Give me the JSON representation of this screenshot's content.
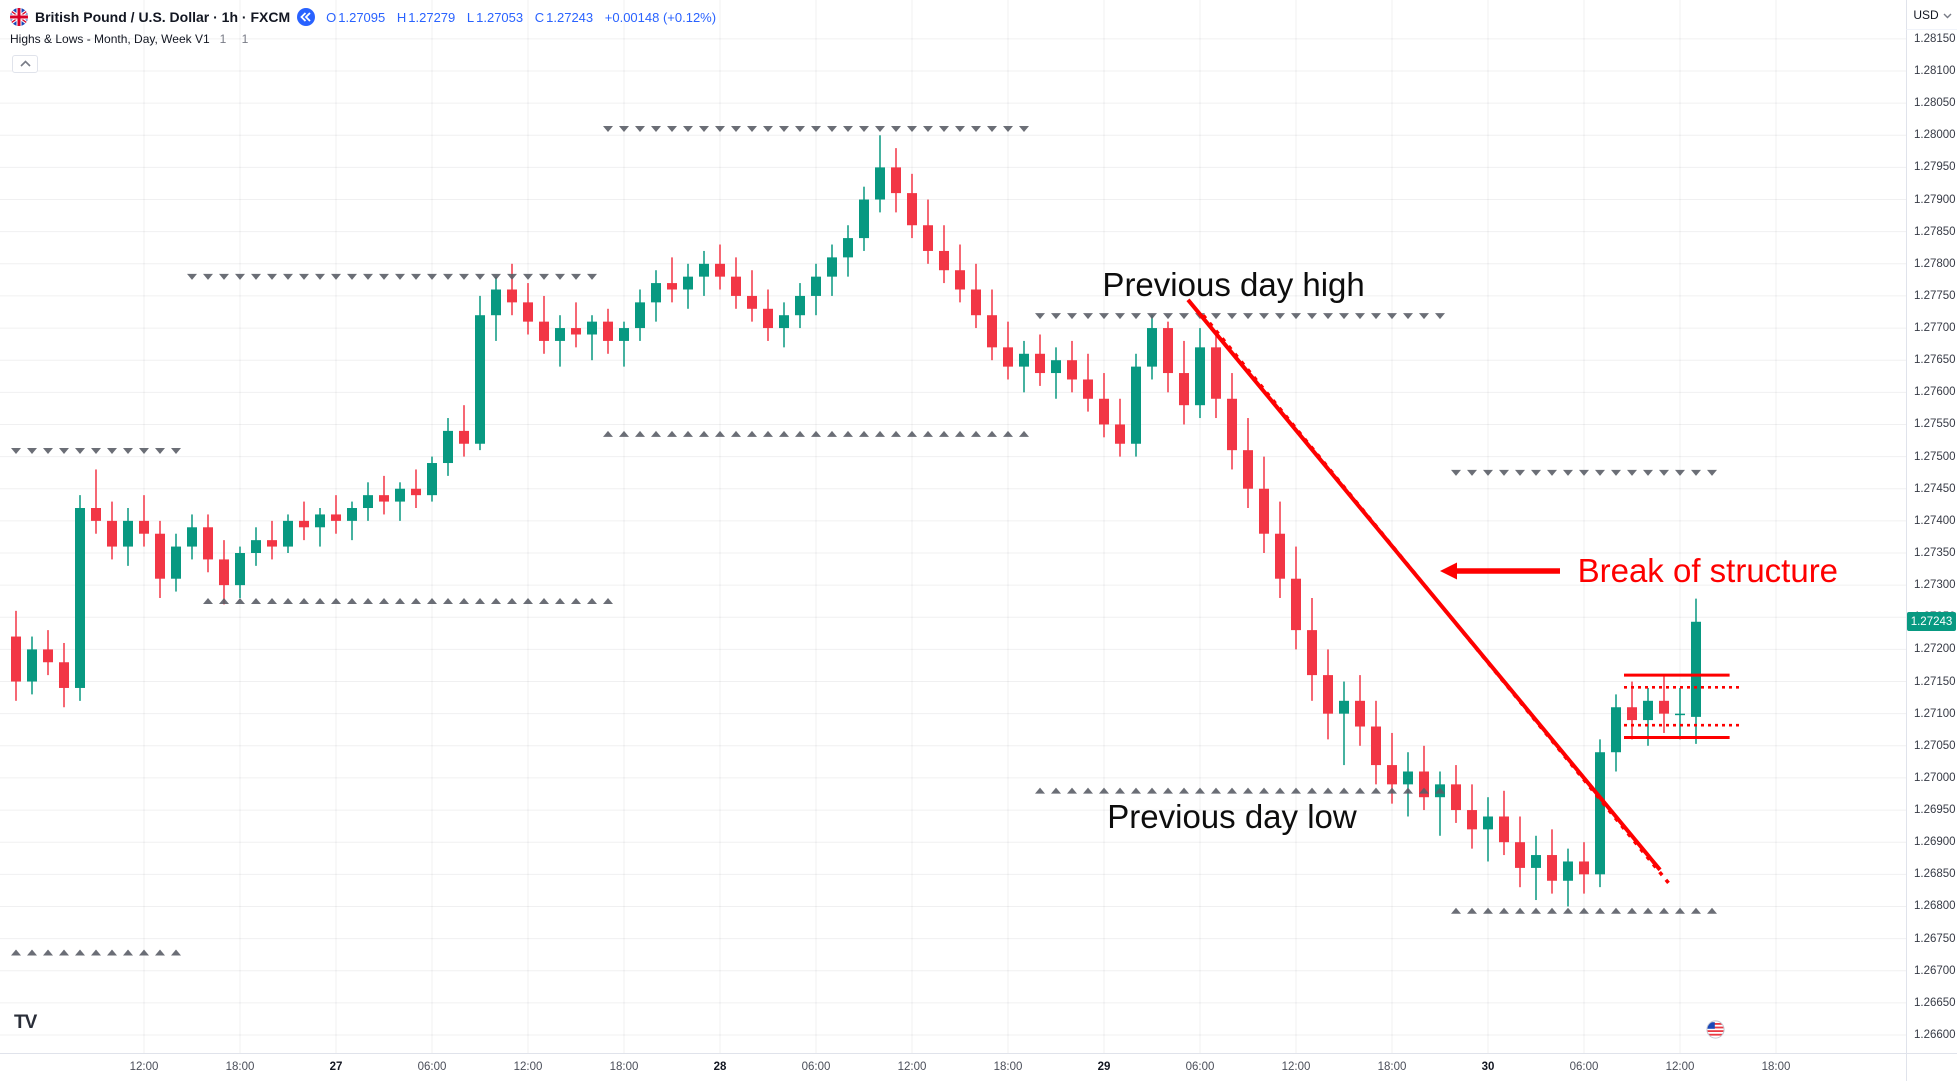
{
  "header": {
    "symbol_title": "British Pound / U.S. Dollar · 1h · FXCM",
    "ohlc": {
      "open_label": "O",
      "open": "1.27095",
      "high_label": "H",
      "high": "1.27279",
      "low_label": "L",
      "low": "1.27053",
      "close_label": "C",
      "close": "1.27243",
      "change": "+0.00148 (+0.12%)"
    },
    "indicator": {
      "title": "Highs & Lows - Month, Day, Week V1",
      "args": "1 1"
    }
  },
  "branding": {
    "logo": "TV"
  },
  "icons": {
    "symbol_flag": "gbp-flag-icon",
    "jump_button": "double-chevron-left-icon",
    "legend_collapse": "chevron-up-icon",
    "currency_caret": "chevron-down-icon",
    "event_marker": "us-flag-event-icon"
  },
  "colors": {
    "up": "#089981",
    "down": "#f23645",
    "marker": "#5c5f68",
    "grid": "rgba(42,46,57,0.07)",
    "annotation": "#fe0000",
    "accent": "#2962ff",
    "axis_text": "#363a45",
    "last_price_bg": "#089981"
  },
  "price_axis": {
    "currency": "USD",
    "last_price": "1.27243",
    "ticks": [
      "1.28150",
      "1.28100",
      "1.28050",
      "1.28000",
      "1.27950",
      "1.27900",
      "1.27850",
      "1.27800",
      "1.27750",
      "1.27700",
      "1.27650",
      "1.27600",
      "1.27550",
      "1.27500",
      "1.27450",
      "1.27400",
      "1.27350",
      "1.27300",
      "1.27250",
      "1.27200",
      "1.27150",
      "1.27100",
      "1.27050",
      "1.27000",
      "1.26950",
      "1.26900",
      "1.26850",
      "1.26800",
      "1.26750",
      "1.26700",
      "1.26650",
      "1.26600"
    ]
  },
  "time_axis": {
    "labels": [
      {
        "index": 8,
        "text": "12:00",
        "major": false
      },
      {
        "index": 14,
        "text": "18:00",
        "major": false
      },
      {
        "index": 20,
        "text": "27",
        "major": true
      },
      {
        "index": 26,
        "text": "06:00",
        "major": false
      },
      {
        "index": 32,
        "text": "12:00",
        "major": false
      },
      {
        "index": 38,
        "text": "18:00",
        "major": false
      },
      {
        "index": 44,
        "text": "28",
        "major": true
      },
      {
        "index": 50,
        "text": "06:00",
        "major": false
      },
      {
        "index": 56,
        "text": "12:00",
        "major": false
      },
      {
        "index": 62,
        "text": "18:00",
        "major": false
      },
      {
        "index": 68,
        "text": "29",
        "major": true
      },
      {
        "index": 74,
        "text": "06:00",
        "major": false
      },
      {
        "index": 80,
        "text": "12:00",
        "major": false
      },
      {
        "index": 86,
        "text": "18:00",
        "major": false
      },
      {
        "index": 92,
        "text": "30",
        "major": true
      },
      {
        "index": 98,
        "text": "06:00",
        "major": false
      },
      {
        "index": 104,
        "text": "12:00",
        "major": false
      },
      {
        "index": 110,
        "text": "18:00",
        "major": false
      }
    ]
  },
  "chart_data": {
    "type": "candlestick",
    "title": "British Pound / U.S. Dollar",
    "interval": "1h",
    "exchange": "FXCM",
    "visible_price_range": [
      1.2658,
      1.28165
    ],
    "candles": [
      [
        1.2722,
        1.2726,
        1.2712,
        1.2715
      ],
      [
        1.2715,
        1.2722,
        1.2713,
        1.272
      ],
      [
        1.272,
        1.2723,
        1.2716,
        1.2718
      ],
      [
        1.2718,
        1.2721,
        1.2711,
        1.2714
      ],
      [
        1.2714,
        1.2744,
        1.2712,
        1.2742
      ],
      [
        1.2742,
        1.2748,
        1.2738,
        1.274
      ],
      [
        1.274,
        1.2743,
        1.2734,
        1.2736
      ],
      [
        1.2736,
        1.2742,
        1.2733,
        1.274
      ],
      [
        1.274,
        1.2744,
        1.2736,
        1.2738
      ],
      [
        1.2738,
        1.274,
        1.2728,
        1.2731
      ],
      [
        1.2731,
        1.2738,
        1.2729,
        1.2736
      ],
      [
        1.2736,
        1.2741,
        1.2734,
        1.2739
      ],
      [
        1.2739,
        1.2741,
        1.2732,
        1.2734
      ],
      [
        1.2734,
        1.2737,
        1.2727,
        1.273
      ],
      [
        1.273,
        1.2736,
        1.2728,
        1.2735
      ],
      [
        1.2735,
        1.2739,
        1.2733,
        1.2737
      ],
      [
        1.2737,
        1.274,
        1.2734,
        1.2736
      ],
      [
        1.2736,
        1.2741,
        1.2735,
        1.274
      ],
      [
        1.274,
        1.2743,
        1.2737,
        1.2739
      ],
      [
        1.2739,
        1.2742,
        1.2736,
        1.2741
      ],
      [
        1.2741,
        1.2744,
        1.2738,
        1.274
      ],
      [
        1.274,
        1.2743,
        1.2737,
        1.2742
      ],
      [
        1.2742,
        1.2746,
        1.274,
        1.2744
      ],
      [
        1.2744,
        1.2747,
        1.2741,
        1.2743
      ],
      [
        1.2743,
        1.2746,
        1.274,
        1.2745
      ],
      [
        1.2745,
        1.2748,
        1.2742,
        1.2744
      ],
      [
        1.2744,
        1.275,
        1.2743,
        1.2749
      ],
      [
        1.2749,
        1.2756,
        1.2747,
        1.2754
      ],
      [
        1.2754,
        1.2758,
        1.275,
        1.2752
      ],
      [
        1.2752,
        1.2775,
        1.2751,
        1.2772
      ],
      [
        1.2772,
        1.2778,
        1.2768,
        1.2776
      ],
      [
        1.2776,
        1.278,
        1.2772,
        1.2774
      ],
      [
        1.2774,
        1.2777,
        1.2769,
        1.2771
      ],
      [
        1.2771,
        1.2775,
        1.2766,
        1.2768
      ],
      [
        1.2768,
        1.2772,
        1.2764,
        1.277
      ],
      [
        1.277,
        1.2774,
        1.2767,
        1.2769
      ],
      [
        1.2769,
        1.2772,
        1.2765,
        1.2771
      ],
      [
        1.2771,
        1.2773,
        1.2766,
        1.2768
      ],
      [
        1.2768,
        1.2771,
        1.2764,
        1.277
      ],
      [
        1.277,
        1.2776,
        1.2768,
        1.2774
      ],
      [
        1.2774,
        1.2779,
        1.2771,
        1.2777
      ],
      [
        1.2777,
        1.2781,
        1.2774,
        1.2776
      ],
      [
        1.2776,
        1.278,
        1.2773,
        1.2778
      ],
      [
        1.2778,
        1.2782,
        1.2775,
        1.278
      ],
      [
        1.278,
        1.2783,
        1.2776,
        1.2778
      ],
      [
        1.2778,
        1.2781,
        1.2773,
        1.2775
      ],
      [
        1.2775,
        1.2779,
        1.2771,
        1.2773
      ],
      [
        1.2773,
        1.2776,
        1.2768,
        1.277
      ],
      [
        1.277,
        1.2774,
        1.2767,
        1.2772
      ],
      [
        1.2772,
        1.2777,
        1.277,
        1.2775
      ],
      [
        1.2775,
        1.278,
        1.2772,
        1.2778
      ],
      [
        1.2778,
        1.2783,
        1.2775,
        1.2781
      ],
      [
        1.2781,
        1.2786,
        1.2778,
        1.2784
      ],
      [
        1.2784,
        1.2792,
        1.2782,
        1.279
      ],
      [
        1.279,
        1.28,
        1.2788,
        1.2795
      ],
      [
        1.2795,
        1.2798,
        1.2788,
        1.2791
      ],
      [
        1.2791,
        1.2794,
        1.2784,
        1.2786
      ],
      [
        1.2786,
        1.279,
        1.278,
        1.2782
      ],
      [
        1.2782,
        1.2786,
        1.2777,
        1.2779
      ],
      [
        1.2779,
        1.2783,
        1.2774,
        1.2776
      ],
      [
        1.2776,
        1.278,
        1.277,
        1.2772
      ],
      [
        1.2772,
        1.2776,
        1.2765,
        1.2767
      ],
      [
        1.2767,
        1.2771,
        1.2762,
        1.2764
      ],
      [
        1.2764,
        1.2768,
        1.276,
        1.2766
      ],
      [
        1.2766,
        1.2769,
        1.2761,
        1.2763
      ],
      [
        1.2763,
        1.2767,
        1.2759,
        1.2765
      ],
      [
        1.2765,
        1.2768,
        1.276,
        1.2762
      ],
      [
        1.2762,
        1.2766,
        1.2757,
        1.2759
      ],
      [
        1.2759,
        1.2763,
        1.2753,
        1.2755
      ],
      [
        1.2755,
        1.2759,
        1.275,
        1.2752
      ],
      [
        1.2752,
        1.2766,
        1.275,
        1.2764
      ],
      [
        1.2764,
        1.2772,
        1.2762,
        1.277
      ],
      [
        1.277,
        1.2771,
        1.276,
        1.2763
      ],
      [
        1.2763,
        1.2768,
        1.2755,
        1.2758
      ],
      [
        1.2758,
        1.277,
        1.2756,
        1.2767
      ],
      [
        1.2767,
        1.2769,
        1.2756,
        1.2759
      ],
      [
        1.2759,
        1.2763,
        1.2748,
        1.2751
      ],
      [
        1.2751,
        1.2756,
        1.2742,
        1.2745
      ],
      [
        1.2745,
        1.275,
        1.2735,
        1.2738
      ],
      [
        1.2738,
        1.2743,
        1.2728,
        1.2731
      ],
      [
        1.2731,
        1.2736,
        1.272,
        1.2723
      ],
      [
        1.2723,
        1.2728,
        1.2712,
        1.2716
      ],
      [
        1.2716,
        1.272,
        1.2706,
        1.271
      ],
      [
        1.271,
        1.2715,
        1.2702,
        1.2712
      ],
      [
        1.2712,
        1.2716,
        1.2705,
        1.2708
      ],
      [
        1.2708,
        1.2712,
        1.2699,
        1.2702
      ],
      [
        1.2702,
        1.2707,
        1.2696,
        1.2699
      ],
      [
        1.2699,
        1.2704,
        1.2694,
        1.2701
      ],
      [
        1.2701,
        1.2705,
        1.2695,
        1.2697
      ],
      [
        1.2697,
        1.2701,
        1.2691,
        1.2699
      ],
      [
        1.2699,
        1.2702,
        1.2693,
        1.2695
      ],
      [
        1.2695,
        1.2699,
        1.2689,
        1.2692
      ],
      [
        1.2692,
        1.2697,
        1.2687,
        1.2694
      ],
      [
        1.2694,
        1.2698,
        1.2688,
        1.269
      ],
      [
        1.269,
        1.2694,
        1.2683,
        1.2686
      ],
      [
        1.2686,
        1.2691,
        1.2681,
        1.2688
      ],
      [
        1.2688,
        1.2692,
        1.2682,
        1.2684
      ],
      [
        1.2684,
        1.2689,
        1.268,
        1.2687
      ],
      [
        1.2687,
        1.269,
        1.2682,
        1.2685
      ],
      [
        1.2685,
        1.2706,
        1.2683,
        1.2704
      ],
      [
        1.2704,
        1.2713,
        1.2701,
        1.2711
      ],
      [
        1.2711,
        1.2715,
        1.2706,
        1.2709
      ],
      [
        1.2709,
        1.2714,
        1.2705,
        1.2712
      ],
      [
        1.2712,
        1.2716,
        1.2707,
        1.271
      ],
      [
        1.271,
        1.2714,
        1.2706,
        1.271
      ],
      [
        1.27095,
        1.27279,
        1.27053,
        1.27243
      ]
    ],
    "high_low_markers": [
      {
        "dir": "down",
        "price": 1.28005,
        "from": 37,
        "to": 63
      },
      {
        "dir": "down",
        "price": 1.27775,
        "from": 11,
        "to": 36
      },
      {
        "dir": "down",
        "price": 1.27714,
        "from": 64,
        "to": 89
      },
      {
        "dir": "down",
        "price": 1.2747,
        "from": 90,
        "to": 106
      },
      {
        "dir": "down",
        "price": 1.27504,
        "from": 0,
        "to": 10
      },
      {
        "dir": "up",
        "price": 1.2754,
        "from": 37,
        "to": 63
      },
      {
        "dir": "up",
        "price": 1.2728,
        "from": 12,
        "to": 37
      },
      {
        "dir": "up",
        "price": 1.26985,
        "from": 64,
        "to": 89
      },
      {
        "dir": "up",
        "price": 1.26798,
        "from": 90,
        "to": 106
      },
      {
        "dir": "up",
        "price": 1.26733,
        "from": 0,
        "to": 10
      }
    ],
    "drawings": {
      "trendlines": [
        {
          "style": "solid",
          "from": {
            "i": 73.25,
            "price": 1.27744
          },
          "to": {
            "i": 102.75,
            "price": 1.26857
          }
        },
        {
          "style": "dotted",
          "from": {
            "i": 74.2,
            "price": 1.2772
          },
          "to": {
            "i": 103.5,
            "price": 1.2683
          }
        }
      ],
      "levels": [
        {
          "style": "solid",
          "price": 1.2716,
          "from_i": 100.5,
          "to_i": 107.1
        },
        {
          "style": "dotted",
          "price": 1.27141,
          "from_i": 100.5,
          "to_i": 107.9
        },
        {
          "style": "dotted",
          "price": 1.27082,
          "from_i": 100.5,
          "to_i": 107.9
        },
        {
          "style": "solid",
          "price": 1.27063,
          "from_i": 100.5,
          "to_i": 107.1
        }
      ],
      "arrow": {
        "tip": {
          "i": 89,
          "price": 1.27322
        },
        "tail": {
          "i": 96.5,
          "price": 1.27322
        }
      },
      "texts": [
        {
          "key": "prev_day_high",
          "text": "Previous day high",
          "anchor": {
            "i": 76.1,
            "price": 1.27767
          },
          "color": "#0d0d0d"
        },
        {
          "key": "prev_day_low",
          "text": "Previous day low",
          "anchor": {
            "i": 76.0,
            "price": 1.26939
          },
          "color": "#0d0d0d"
        },
        {
          "key": "break_of_structure",
          "text": "Break of structure",
          "anchor": {
            "i": 97.6,
            "price": 1.27322
          },
          "color": "#fe0000"
        }
      ]
    }
  }
}
